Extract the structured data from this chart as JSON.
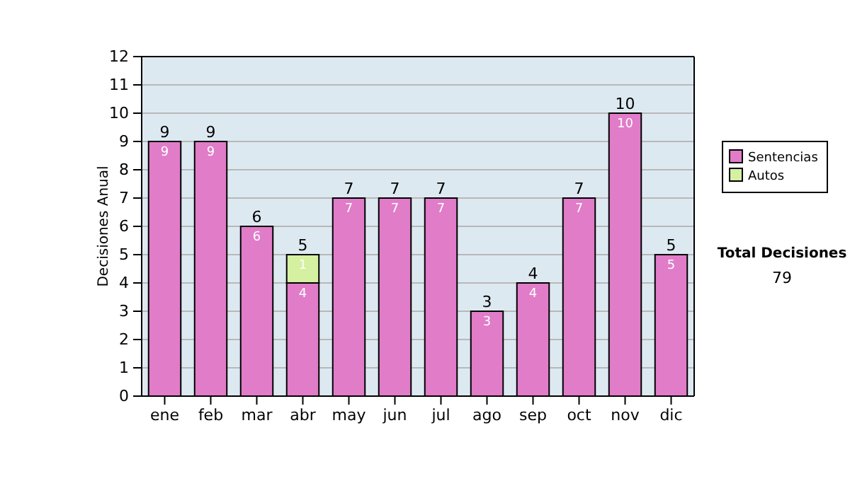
{
  "chart_data": {
    "type": "bar",
    "stacked": true,
    "ylabel": "Decisiones Anual",
    "categories": [
      "ene",
      "feb",
      "mar",
      "abr",
      "may",
      "jun",
      "jul",
      "ago",
      "sep",
      "oct",
      "nov",
      "dic"
    ],
    "series": [
      {
        "name": "Sentencias",
        "color": "#e07cc8",
        "values": [
          9,
          9,
          6,
          4,
          7,
          7,
          7,
          3,
          4,
          7,
          10,
          5
        ],
        "value_labels": [
          "9",
          "9",
          "6",
          "4",
          "7",
          "7",
          "7",
          "3",
          "4",
          "7",
          "10",
          "5"
        ]
      },
      {
        "name": "Autos",
        "color": "#d4f0a0",
        "values": [
          null,
          null,
          null,
          1,
          null,
          null,
          null,
          null,
          null,
          null,
          null,
          null
        ],
        "value_labels": [
          null,
          null,
          null,
          "1",
          null,
          null,
          null,
          null,
          null,
          null,
          null,
          null
        ]
      }
    ],
    "totals": [
      "9",
      "9",
      "6",
      "5",
      "7",
      "7",
      "7",
      "3",
      "4",
      "7",
      "10",
      "5"
    ],
    "ylim": [
      0,
      12
    ],
    "yticks": [
      0,
      1,
      2,
      3,
      4,
      5,
      6,
      7,
      8,
      9,
      10,
      11,
      12
    ],
    "grid": "y",
    "legend": "right",
    "annotations": [
      "Total Decisiones",
      "79"
    ]
  }
}
